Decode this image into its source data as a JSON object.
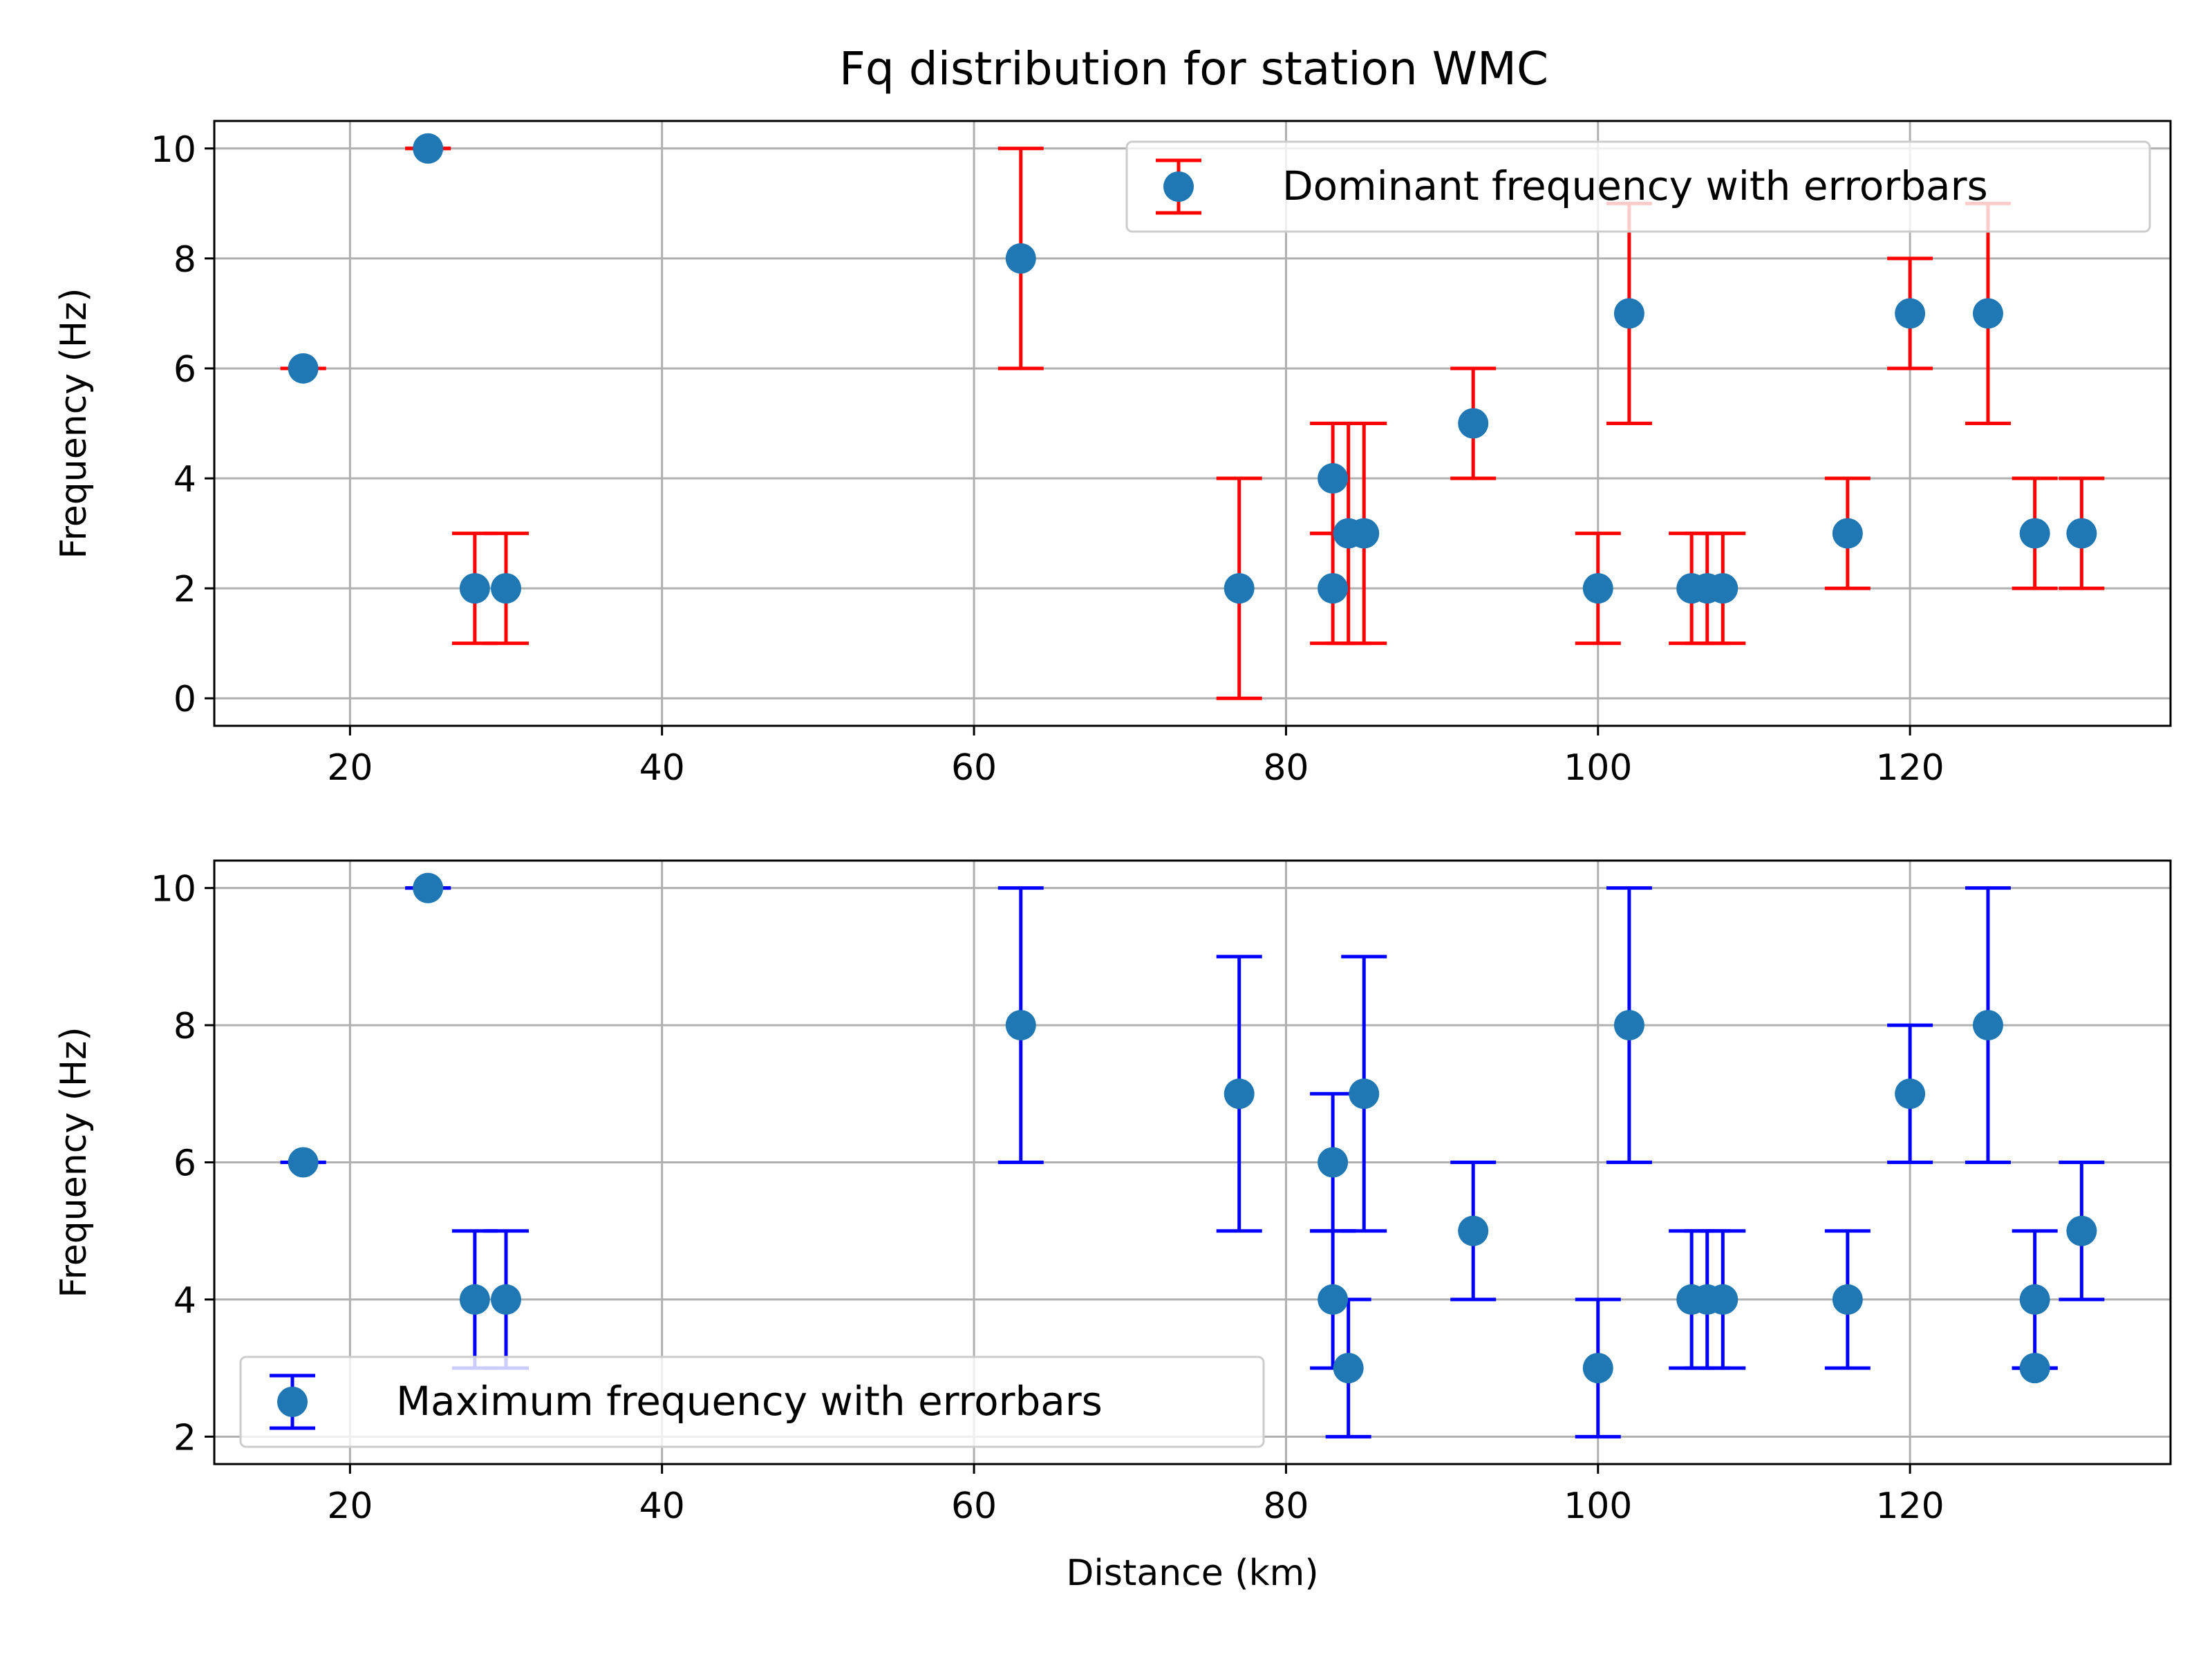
{
  "title": "Fq distribution for station WMC",
  "colors": {
    "marker": "#1f77b4",
    "grid": "#b0b0b0",
    "axes": "#000000",
    "legend_border": "#cccccc"
  },
  "chart_data": [
    {
      "type": "scatter",
      "xlabel": "",
      "ylabel": "Frequency (Hz)",
      "xlim": [
        11.3,
        136.7
      ],
      "ylim": [
        -0.5,
        10.5
      ],
      "xticks": [
        20,
        40,
        60,
        80,
        100,
        120
      ],
      "yticks": [
        0,
        2,
        4,
        6,
        8,
        10
      ],
      "grid": true,
      "legend_position": "upper right",
      "series": [
        {
          "name": "Dominant frequency with errorbars",
          "marker_color": "#1f77b4",
          "errorbar_color": "#ff0000",
          "points": [
            {
              "x": 17,
              "y": 6,
              "lo": 6,
              "hi": 6
            },
            {
              "x": 25,
              "y": 10,
              "lo": 10,
              "hi": 10
            },
            {
              "x": 28,
              "y": 2,
              "lo": 1,
              "hi": 3
            },
            {
              "x": 30,
              "y": 2,
              "lo": 1,
              "hi": 3
            },
            {
              "x": 63,
              "y": 8,
              "lo": 6,
              "hi": 10
            },
            {
              "x": 77,
              "y": 2,
              "lo": 0,
              "hi": 4
            },
            {
              "x": 83,
              "y": 4,
              "lo": 3,
              "hi": 5
            },
            {
              "x": 83,
              "y": 2,
              "lo": 1,
              "hi": 3
            },
            {
              "x": 84,
              "y": 3,
              "lo": 1,
              "hi": 5
            },
            {
              "x": 85,
              "y": 3,
              "lo": 1,
              "hi": 5
            },
            {
              "x": 92,
              "y": 5,
              "lo": 4,
              "hi": 6
            },
            {
              "x": 100,
              "y": 2,
              "lo": 1,
              "hi": 3
            },
            {
              "x": 102,
              "y": 7,
              "lo": 5,
              "hi": 9
            },
            {
              "x": 106,
              "y": 2,
              "lo": 1,
              "hi": 3
            },
            {
              "x": 107,
              "y": 2,
              "lo": 1,
              "hi": 3
            },
            {
              "x": 108,
              "y": 2,
              "lo": 1,
              "hi": 3
            },
            {
              "x": 116,
              "y": 3,
              "lo": 2,
              "hi": 4
            },
            {
              "x": 120,
              "y": 7,
              "lo": 6,
              "hi": 8
            },
            {
              "x": 125,
              "y": 7,
              "lo": 5,
              "hi": 9
            },
            {
              "x": 128,
              "y": 3,
              "lo": 2,
              "hi": 4
            },
            {
              "x": 131,
              "y": 3,
              "lo": 2,
              "hi": 4
            }
          ]
        }
      ]
    },
    {
      "type": "scatter",
      "xlabel": "Distance (km)",
      "ylabel": "Frequency (Hz)",
      "xlim": [
        11.3,
        136.7
      ],
      "ylim": [
        1.6,
        10.4
      ],
      "xticks": [
        20,
        40,
        60,
        80,
        100,
        120
      ],
      "yticks": [
        2,
        4,
        6,
        8,
        10
      ],
      "grid": true,
      "legend_position": "lower left",
      "series": [
        {
          "name": "Maximum frequency with errorbars",
          "marker_color": "#1f77b4",
          "errorbar_color": "#0000ff",
          "points": [
            {
              "x": 17,
              "y": 6,
              "lo": 6,
              "hi": 6
            },
            {
              "x": 25,
              "y": 10,
              "lo": 10,
              "hi": 10
            },
            {
              "x": 28,
              "y": 4,
              "lo": 3,
              "hi": 5
            },
            {
              "x": 30,
              "y": 4,
              "lo": 3,
              "hi": 5
            },
            {
              "x": 63,
              "y": 8,
              "lo": 6,
              "hi": 10
            },
            {
              "x": 77,
              "y": 7,
              "lo": 5,
              "hi": 9
            },
            {
              "x": 83,
              "y": 6,
              "lo": 5,
              "hi": 7
            },
            {
              "x": 83,
              "y": 4,
              "lo": 3,
              "hi": 5
            },
            {
              "x": 84,
              "y": 3,
              "lo": 2,
              "hi": 4
            },
            {
              "x": 85,
              "y": 7,
              "lo": 5,
              "hi": 9
            },
            {
              "x": 92,
              "y": 5,
              "lo": 4,
              "hi": 6
            },
            {
              "x": 100,
              "y": 3,
              "lo": 2,
              "hi": 4
            },
            {
              "x": 102,
              "y": 8,
              "lo": 6,
              "hi": 10
            },
            {
              "x": 106,
              "y": 4,
              "lo": 3,
              "hi": 5
            },
            {
              "x": 107,
              "y": 4,
              "lo": 3,
              "hi": 5
            },
            {
              "x": 108,
              "y": 4,
              "lo": 3,
              "hi": 5
            },
            {
              "x": 116,
              "y": 4,
              "lo": 3,
              "hi": 5
            },
            {
              "x": 120,
              "y": 7,
              "lo": 6,
              "hi": 8
            },
            {
              "x": 125,
              "y": 8,
              "lo": 6,
              "hi": 10
            },
            {
              "x": 128,
              "y": 4,
              "lo": 3,
              "hi": 5
            },
            {
              "x": 128,
              "y": 3,
              "lo": 3,
              "hi": 3
            },
            {
              "x": 131,
              "y": 5,
              "lo": 4,
              "hi": 6
            }
          ]
        }
      ]
    }
  ]
}
